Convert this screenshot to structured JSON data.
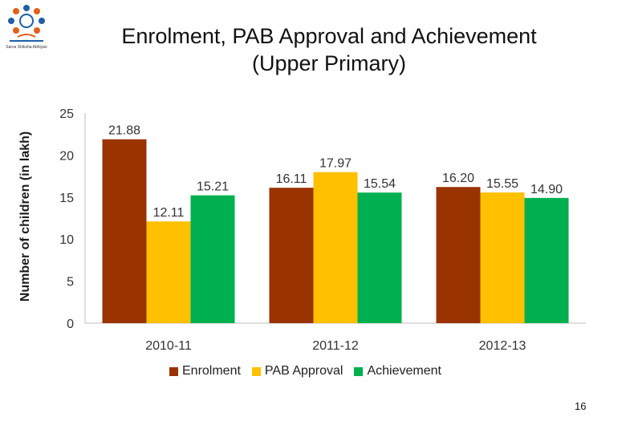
{
  "title_line1": "Enrolment, PAB Approval and Achievement",
  "title_line2": "(Upper Primary)",
  "page_number": "16",
  "logo_text": "Sarva Shiksha Abhiyan",
  "colors": {
    "enrolment": "#993300",
    "pab": "#FFC000",
    "achievement": "#00B050"
  },
  "chart_data": {
    "type": "bar",
    "categories": [
      "2010-11",
      "2011-12",
      "2012-13"
    ],
    "series": [
      {
        "name": "Enrolment",
        "values": [
          21.88,
          16.11,
          16.2
        ],
        "labels": [
          "21.88",
          "16.11",
          "16.20"
        ]
      },
      {
        "name": "PAB Approval",
        "values": [
          12.11,
          17.97,
          15.55
        ],
        "labels": [
          "12.11",
          "17.97",
          "15.55"
        ]
      },
      {
        "name": "Achievement",
        "values": [
          15.21,
          15.54,
          14.9
        ],
        "labels": [
          "15.21",
          "15.54",
          "14.90"
        ]
      }
    ],
    "ylabel": "Number of children (in lakh)",
    "xlabel": "",
    "ylim": [
      0,
      25
    ],
    "yticks": [
      "0",
      "5",
      "10",
      "15",
      "20",
      "25"
    ],
    "grid": false,
    "legend": "bottom"
  }
}
